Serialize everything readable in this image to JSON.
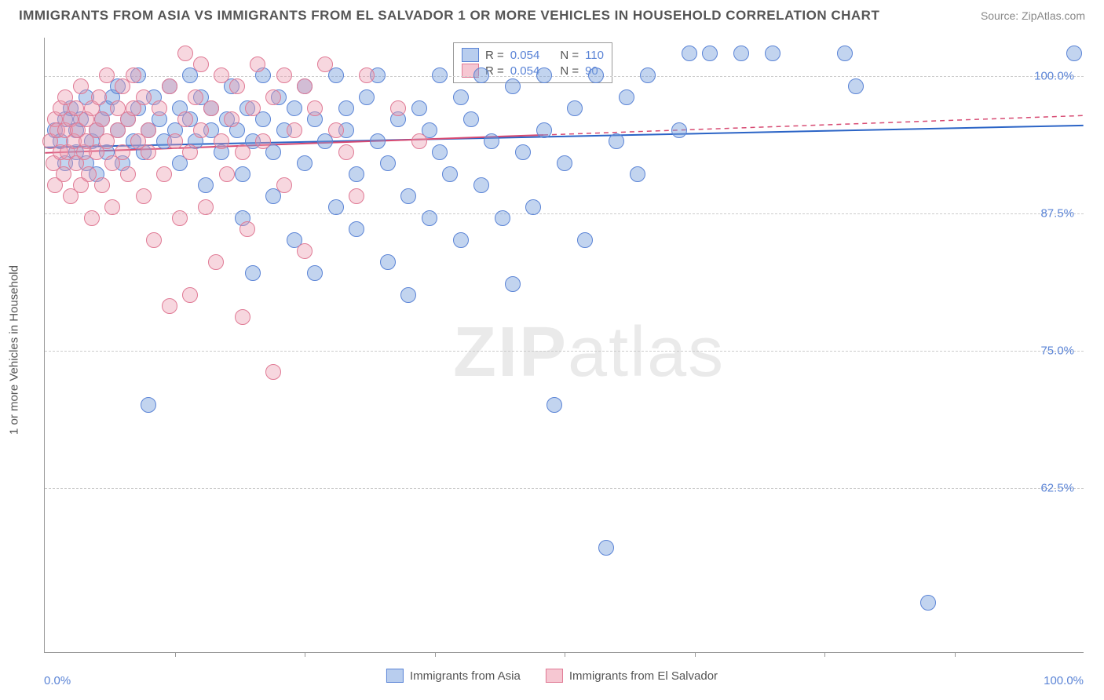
{
  "title": "IMMIGRANTS FROM ASIA VS IMMIGRANTS FROM EL SALVADOR 1 OR MORE VEHICLES IN HOUSEHOLD CORRELATION CHART",
  "source": "Source: ZipAtlas.com",
  "watermark_bold": "ZIP",
  "watermark_rest": "atlas",
  "y_axis_title": "1 or more Vehicles in Household",
  "x_axis": {
    "min": 0,
    "max": 100,
    "label_min": "0.0%",
    "label_max": "100.0%",
    "tick_step": 12.5
  },
  "y_axis": {
    "min": 47.5,
    "max": 103.5,
    "gridlines": [
      62.5,
      75.0,
      87.5,
      100.0
    ],
    "labels": [
      "62.5%",
      "75.0%",
      "87.5%",
      "100.0%"
    ]
  },
  "legend_top": {
    "rows": [
      {
        "swatch_fill": "#b8cdee",
        "swatch_border": "#5b84d6",
        "r_label": "R =",
        "r_val": "0.054",
        "n_label": "N =",
        "n_val": "110"
      },
      {
        "swatch_fill": "#f6c7d2",
        "swatch_border": "#e07a95",
        "r_label": "R =",
        "r_val": "0.054",
        "n_label": "N =",
        "n_val": "90"
      }
    ]
  },
  "legend_bottom": [
    {
      "swatch_fill": "#b8cdee",
      "swatch_border": "#5b84d6",
      "label": "Immigrants from Asia"
    },
    {
      "swatch_fill": "#f6c7d2",
      "swatch_border": "#e07a95",
      "label": "Immigrants from El Salvador"
    }
  ],
  "series": [
    {
      "name": "asia",
      "color_fill": "rgba(120,160,220,0.45)",
      "color_stroke": "#5b84d6",
      "marker_radius": 10,
      "trend": {
        "y_at_x0": 93.5,
        "y_at_x100": 95.5,
        "solid_until_x": 100,
        "color": "#2b64c6",
        "width": 2
      },
      "points": [
        [
          1,
          95
        ],
        [
          1.5,
          94
        ],
        [
          2,
          96
        ],
        [
          2,
          92
        ],
        [
          2.5,
          97
        ],
        [
          3,
          93
        ],
        [
          3,
          95
        ],
        [
          3.5,
          96
        ],
        [
          4,
          92
        ],
        [
          4,
          98
        ],
        [
          4.5,
          94
        ],
        [
          5,
          95
        ],
        [
          5,
          91
        ],
        [
          5.5,
          96
        ],
        [
          6,
          97
        ],
        [
          6,
          93
        ],
        [
          6.5,
          98
        ],
        [
          7,
          95
        ],
        [
          7,
          99
        ],
        [
          7.5,
          92
        ],
        [
          8,
          96
        ],
        [
          8.5,
          94
        ],
        [
          9,
          97
        ],
        [
          9,
          100
        ],
        [
          9.5,
          93
        ],
        [
          10,
          95
        ],
        [
          10,
          70
        ],
        [
          10.5,
          98
        ],
        [
          11,
          96
        ],
        [
          11.5,
          94
        ],
        [
          12,
          99
        ],
        [
          12.5,
          95
        ],
        [
          13,
          92
        ],
        [
          13,
          97
        ],
        [
          14,
          96
        ],
        [
          14,
          100
        ],
        [
          14.5,
          94
        ],
        [
          15,
          98
        ],
        [
          15.5,
          90
        ],
        [
          16,
          95
        ],
        [
          16,
          97
        ],
        [
          17,
          93
        ],
        [
          17.5,
          96
        ],
        [
          18,
          99
        ],
        [
          18.5,
          95
        ],
        [
          19,
          91
        ],
        [
          19,
          87
        ],
        [
          19.5,
          97
        ],
        [
          20,
          94
        ],
        [
          20,
          82
        ],
        [
          21,
          96
        ],
        [
          21,
          100
        ],
        [
          22,
          93
        ],
        [
          22,
          89
        ],
        [
          22.5,
          98
        ],
        [
          23,
          95
        ],
        [
          24,
          97
        ],
        [
          24,
          85
        ],
        [
          25,
          92
        ],
        [
          25,
          99
        ],
        [
          26,
          96
        ],
        [
          26,
          82
        ],
        [
          27,
          94
        ],
        [
          28,
          88
        ],
        [
          28,
          100
        ],
        [
          29,
          95
        ],
        [
          29,
          97
        ],
        [
          30,
          91
        ],
        [
          30,
          86
        ],
        [
          31,
          98
        ],
        [
          32,
          94
        ],
        [
          32,
          100
        ],
        [
          33,
          83
        ],
        [
          33,
          92
        ],
        [
          34,
          96
        ],
        [
          35,
          89
        ],
        [
          35,
          80
        ],
        [
          36,
          97
        ],
        [
          37,
          95
        ],
        [
          37,
          87
        ],
        [
          38,
          100
        ],
        [
          38,
          93
        ],
        [
          39,
          91
        ],
        [
          40,
          98
        ],
        [
          40,
          85
        ],
        [
          41,
          96
        ],
        [
          42,
          100
        ],
        [
          42,
          90
        ],
        [
          43,
          94
        ],
        [
          44,
          87
        ],
        [
          45,
          99
        ],
        [
          45,
          81
        ],
        [
          46,
          93
        ],
        [
          47,
          88
        ],
        [
          48,
          100
        ],
        [
          48,
          95
        ],
        [
          49,
          70
        ],
        [
          50,
          92
        ],
        [
          51,
          97
        ],
        [
          52,
          85
        ],
        [
          53,
          100
        ],
        [
          54,
          57
        ],
        [
          55,
          94
        ],
        [
          56,
          98
        ],
        [
          57,
          91
        ],
        [
          58,
          100
        ],
        [
          61,
          95
        ],
        [
          62,
          102
        ],
        [
          64,
          102
        ],
        [
          67,
          102
        ],
        [
          70,
          102
        ],
        [
          77,
          102
        ],
        [
          78,
          99
        ],
        [
          85,
          52
        ],
        [
          99,
          102
        ]
      ]
    },
    {
      "name": "el_salvador",
      "color_fill": "rgba(235,155,175,0.40)",
      "color_stroke": "#e07a95",
      "marker_radius": 10,
      "trend": {
        "y_at_x0": 93.0,
        "y_at_x100": 96.4,
        "solid_until_x": 48,
        "color": "#d74a72",
        "width": 2
      },
      "points": [
        [
          0.5,
          94
        ],
        [
          0.8,
          92
        ],
        [
          1,
          96
        ],
        [
          1,
          90
        ],
        [
          1.2,
          95
        ],
        [
          1.5,
          93
        ],
        [
          1.5,
          97
        ],
        [
          1.8,
          91
        ],
        [
          2,
          95
        ],
        [
          2,
          98
        ],
        [
          2.2,
          93
        ],
        [
          2.5,
          96
        ],
        [
          2.5,
          89
        ],
        [
          2.8,
          94
        ],
        [
          3,
          92
        ],
        [
          3,
          97
        ],
        [
          3.2,
          95
        ],
        [
          3.5,
          90
        ],
        [
          3.5,
          99
        ],
        [
          3.8,
          93
        ],
        [
          4,
          96
        ],
        [
          4,
          94
        ],
        [
          4.2,
          91
        ],
        [
          4.5,
          97
        ],
        [
          4.5,
          87
        ],
        [
          5,
          95
        ],
        [
          5,
          93
        ],
        [
          5.2,
          98
        ],
        [
          5.5,
          90
        ],
        [
          5.5,
          96
        ],
        [
          6,
          94
        ],
        [
          6,
          100
        ],
        [
          6.5,
          92
        ],
        [
          6.5,
          88
        ],
        [
          7,
          95
        ],
        [
          7,
          97
        ],
        [
          7.5,
          93
        ],
        [
          7.5,
          99
        ],
        [
          8,
          91
        ],
        [
          8,
          96
        ],
        [
          8.5,
          97
        ],
        [
          8.5,
          100
        ],
        [
          9,
          94
        ],
        [
          9.5,
          89
        ],
        [
          9.5,
          98
        ],
        [
          10,
          93
        ],
        [
          10,
          95
        ],
        [
          10.5,
          85
        ],
        [
          11,
          97
        ],
        [
          11.5,
          91
        ],
        [
          12,
          99
        ],
        [
          12,
          79
        ],
        [
          12.5,
          94
        ],
        [
          13,
          87
        ],
        [
          13.5,
          96
        ],
        [
          13.5,
          102
        ],
        [
          14,
          93
        ],
        [
          14,
          80
        ],
        [
          14.5,
          98
        ],
        [
          15,
          95
        ],
        [
          15,
          101
        ],
        [
          15.5,
          88
        ],
        [
          16,
          97
        ],
        [
          16.5,
          83
        ],
        [
          17,
          94
        ],
        [
          17,
          100
        ],
        [
          17.5,
          91
        ],
        [
          18,
          96
        ],
        [
          18.5,
          99
        ],
        [
          19,
          78
        ],
        [
          19,
          93
        ],
        [
          19.5,
          86
        ],
        [
          20,
          97
        ],
        [
          20.5,
          101
        ],
        [
          21,
          94
        ],
        [
          22,
          73
        ],
        [
          22,
          98
        ],
        [
          23,
          90
        ],
        [
          23,
          100
        ],
        [
          24,
          95
        ],
        [
          25,
          99
        ],
        [
          25,
          84
        ],
        [
          26,
          97
        ],
        [
          27,
          101
        ],
        [
          28,
          95
        ],
        [
          29,
          93
        ],
        [
          30,
          89
        ],
        [
          31,
          100
        ],
        [
          34,
          97
        ],
        [
          36,
          94
        ]
      ]
    }
  ]
}
